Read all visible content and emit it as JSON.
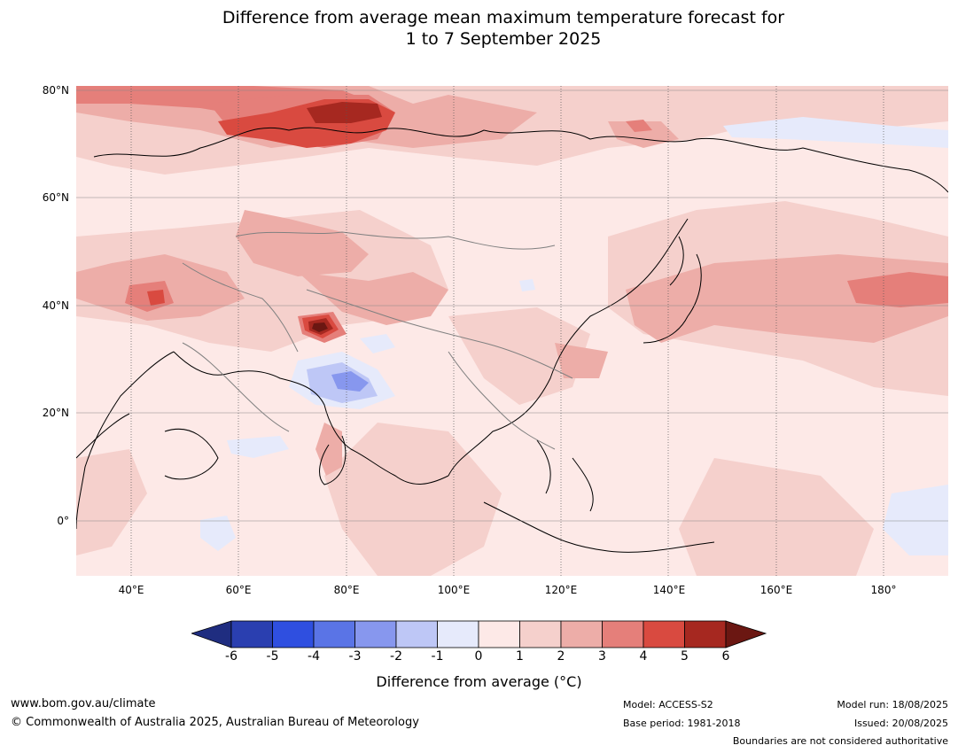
{
  "title": {
    "line1": "Difference from average mean maximum temperature forecast for",
    "line2": "1 to 7 September 2025"
  },
  "map": {
    "lat_labels": [
      "80°N",
      "60°N",
      "40°N",
      "20°N",
      "0°"
    ],
    "lon_labels": [
      "40°E",
      "60°E",
      "80°E",
      "100°E",
      "120°E",
      "140°E",
      "160°E",
      "180°"
    ],
    "land_colour": "#fde9e7",
    "ocean_colour": "#fde9e7"
  },
  "colorbar": {
    "ticks": [
      "-6",
      "-5",
      "-4",
      "-3",
      "-2",
      "-1",
      "0",
      "1",
      "2",
      "3",
      "4",
      "5",
      "6"
    ],
    "colours": [
      "#1f2d80",
      "#2a3fb0",
      "#2f4fe0",
      "#5a74e6",
      "#8797ee",
      "#bec7f6",
      "#e6eafb",
      "#fde9e7",
      "#f5d0cc",
      "#edada8",
      "#e57f7a",
      "#d94a40",
      "#a62820",
      "#6b1712"
    ],
    "label": "Difference from average (°C)"
  },
  "footer": {
    "url": "www.bom.gov.au/climate",
    "copyright": "© Commonwealth of Australia 2025, Australian Bureau of Meteorology",
    "model": "Model: ACCESS-S2",
    "base_period": "Base period: 1981-2018",
    "model_run": "Model run: 18/08/2025",
    "issued": "Issued: 20/08/2025",
    "disclaimer": "Boundaries are not considered authoritative"
  }
}
